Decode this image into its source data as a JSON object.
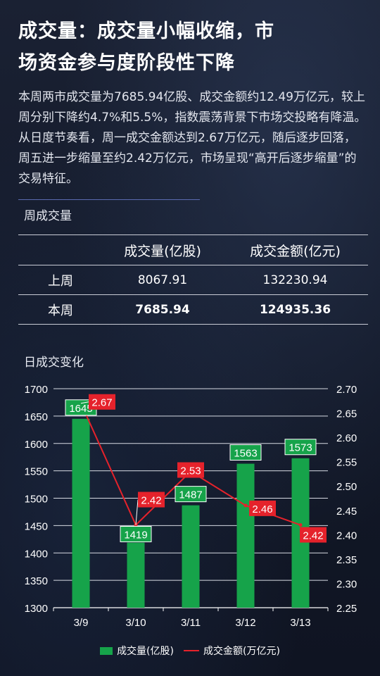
{
  "header": {
    "title_line1": "成交量：成交量小幅收缩，市",
    "title_line2": "场资金参与度阶段性下降"
  },
  "summary": "本周两市成交量为7685.94亿股、成交金额约12.49万亿元，较上周分别下降约4.7%和5.5%，指数震荡背景下市场交投略有降温。从日度节奏看，周一成交金额达到2.67万亿元，随后逐步回落，周五进一步缩量至约2.42万亿元，市场呈现“高开后逐步缩量”的交易特征。",
  "weekly_section": {
    "title": "周成交量",
    "col1": "",
    "col2": "成交量(亿股)",
    "col3": "成交金额(亿元)",
    "rows": [
      {
        "label": "上周",
        "volume": "8067.91",
        "amount": "132230.94"
      },
      {
        "label": "本周",
        "volume": "7685.94",
        "amount": "124935.36"
      }
    ]
  },
  "daily_section": {
    "title": "日成交变化"
  },
  "chart_data": {
    "type": "bar",
    "categories": [
      "3/9",
      "3/10",
      "3/11",
      "3/12",
      "3/13"
    ],
    "series": [
      {
        "name": "成交量(亿股)",
        "type": "bar",
        "axis": "left",
        "values": [
          1645,
          1419,
          1487,
          1563,
          1573
        ],
        "color": "#16a34a"
      },
      {
        "name": "成交金额(万亿元)",
        "type": "line",
        "axis": "right",
        "values": [
          2.67,
          2.42,
          2.53,
          2.46,
          2.42
        ],
        "color": "#e5222b"
      }
    ],
    "y_left": {
      "min": 1300,
      "max": 1700,
      "ticks": [
        "1300",
        "1350",
        "1400",
        "1450",
        "1500",
        "1550",
        "1600",
        "1650",
        "1700"
      ]
    },
    "y_right": {
      "min": 2.25,
      "max": 2.7,
      "ticks": [
        "2.25",
        "2.30",
        "2.35",
        "2.40",
        "2.45",
        "2.50",
        "2.55",
        "2.60",
        "2.65",
        "2.70"
      ]
    },
    "grid": "horizontal",
    "legend": "bottom-center"
  }
}
